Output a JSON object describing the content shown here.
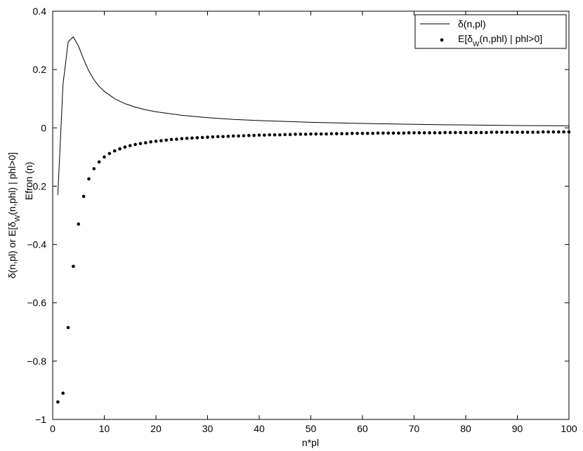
{
  "chart_data": {
    "type": "line",
    "title": "",
    "xlabel": "n*pl",
    "ylabel": {
      "line1_prefix": "δ(n,pl) or E[δ",
      "line1_sub": "W",
      "line1_suffix": "(n,phl) | phl>0]",
      "line2": "Efron (n)"
    },
    "xlim": [
      0,
      100
    ],
    "ylim": [
      -1,
      0.4
    ],
    "xticks": [
      0,
      10,
      20,
      30,
      40,
      50,
      60,
      70,
      80,
      90,
      100
    ],
    "yticks": [
      -1,
      -0.8,
      -0.6,
      -0.4,
      -0.2,
      0,
      0.2,
      0.4
    ],
    "ytick_labels": [
      "−1",
      "−0.8",
      "−0.6",
      "−0.4",
      "−0.2",
      "0",
      "0.2",
      "0.4"
    ],
    "grid": false,
    "legend": {
      "placement": "top-right",
      "entries": [
        {
          "label_prefix": "δ(n,pl)",
          "label_sub": "",
          "label_suffix": ""
        },
        {
          "label_prefix": "E[δ",
          "label_sub": "W",
          "label_suffix": "(n,phl) | phl>0]"
        }
      ]
    },
    "series": [
      {
        "style": "line",
        "color": "#000000",
        "points": [
          [
            1,
            -0.23
          ],
          [
            2,
            0.15
          ],
          [
            3,
            0.295
          ],
          [
            4,
            0.312
          ],
          [
            5,
            0.28
          ],
          [
            6,
            0.235
          ],
          [
            7,
            0.195
          ],
          [
            8,
            0.165
          ],
          [
            9,
            0.142
          ],
          [
            10,
            0.125
          ],
          [
            12,
            0.1
          ],
          [
            14,
            0.083
          ],
          [
            16,
            0.071
          ],
          [
            18,
            0.062
          ],
          [
            20,
            0.055
          ],
          [
            25,
            0.043
          ],
          [
            30,
            0.035
          ],
          [
            35,
            0.029
          ],
          [
            40,
            0.025
          ],
          [
            45,
            0.022
          ],
          [
            50,
            0.019
          ],
          [
            60,
            0.015
          ],
          [
            70,
            0.012
          ],
          [
            80,
            0.01
          ],
          [
            90,
            0.008
          ],
          [
            100,
            0.007
          ]
        ]
      },
      {
        "style": "scatter",
        "color": "#000000",
        "points": [
          [
            1,
            -0.94
          ],
          [
            2,
            -0.91
          ],
          [
            3,
            -0.685
          ],
          [
            4,
            -0.475
          ],
          [
            5,
            -0.33
          ],
          [
            6,
            -0.235
          ],
          [
            7,
            -0.175
          ],
          [
            8,
            -0.14
          ],
          [
            9,
            -0.117
          ],
          [
            10,
            -0.1
          ],
          [
            11,
            -0.088
          ],
          [
            12,
            -0.079
          ],
          [
            13,
            -0.072
          ],
          [
            14,
            -0.066
          ],
          [
            15,
            -0.061
          ],
          [
            16,
            -0.057
          ],
          [
            17,
            -0.054
          ],
          [
            18,
            -0.051
          ],
          [
            19,
            -0.048
          ],
          [
            20,
            -0.046
          ],
          [
            21,
            -0.044
          ],
          [
            22,
            -0.042
          ],
          [
            23,
            -0.04
          ],
          [
            24,
            -0.039
          ],
          [
            25,
            -0.037
          ],
          [
            26,
            -0.036
          ],
          [
            27,
            -0.035
          ],
          [
            28,
            -0.034
          ],
          [
            29,
            -0.033
          ],
          [
            30,
            -0.032
          ],
          [
            31,
            -0.031
          ],
          [
            32,
            -0.03
          ],
          [
            33,
            -0.03
          ],
          [
            34,
            -0.029
          ],
          [
            35,
            -0.028
          ],
          [
            36,
            -0.028
          ],
          [
            37,
            -0.027
          ],
          [
            38,
            -0.026
          ],
          [
            39,
            -0.026
          ],
          [
            40,
            -0.025
          ],
          [
            41,
            -0.025
          ],
          [
            42,
            -0.024
          ],
          [
            43,
            -0.024
          ],
          [
            44,
            -0.024
          ],
          [
            45,
            -0.023
          ],
          [
            46,
            -0.023
          ],
          [
            47,
            -0.022
          ],
          [
            48,
            -0.022
          ],
          [
            49,
            -0.022
          ],
          [
            50,
            -0.021
          ],
          [
            51,
            -0.021
          ],
          [
            52,
            -0.021
          ],
          [
            53,
            -0.021
          ],
          [
            54,
            -0.02
          ],
          [
            55,
            -0.02
          ],
          [
            56,
            -0.02
          ],
          [
            57,
            -0.02
          ],
          [
            58,
            -0.019
          ],
          [
            59,
            -0.019
          ],
          [
            60,
            -0.019
          ],
          [
            61,
            -0.019
          ],
          [
            62,
            -0.019
          ],
          [
            63,
            -0.018
          ],
          [
            64,
            -0.018
          ],
          [
            65,
            -0.018
          ],
          [
            66,
            -0.018
          ],
          [
            67,
            -0.018
          ],
          [
            68,
            -0.018
          ],
          [
            69,
            -0.017
          ],
          [
            70,
            -0.017
          ],
          [
            71,
            -0.017
          ],
          [
            72,
            -0.017
          ],
          [
            73,
            -0.017
          ],
          [
            74,
            -0.017
          ],
          [
            75,
            -0.017
          ],
          [
            76,
            -0.016
          ],
          [
            77,
            -0.016
          ],
          [
            78,
            -0.016
          ],
          [
            79,
            -0.016
          ],
          [
            80,
            -0.016
          ],
          [
            81,
            -0.016
          ],
          [
            82,
            -0.016
          ],
          [
            83,
            -0.016
          ],
          [
            84,
            -0.016
          ],
          [
            85,
            -0.015
          ],
          [
            86,
            -0.015
          ],
          [
            87,
            -0.015
          ],
          [
            88,
            -0.015
          ],
          [
            89,
            -0.015
          ],
          [
            90,
            -0.015
          ],
          [
            91,
            -0.015
          ],
          [
            92,
            -0.015
          ],
          [
            93,
            -0.015
          ],
          [
            94,
            -0.015
          ],
          [
            95,
            -0.014
          ],
          [
            96,
            -0.014
          ],
          [
            97,
            -0.014
          ],
          [
            98,
            -0.014
          ],
          [
            99,
            -0.014
          ],
          [
            100,
            -0.014
          ]
        ]
      }
    ]
  }
}
